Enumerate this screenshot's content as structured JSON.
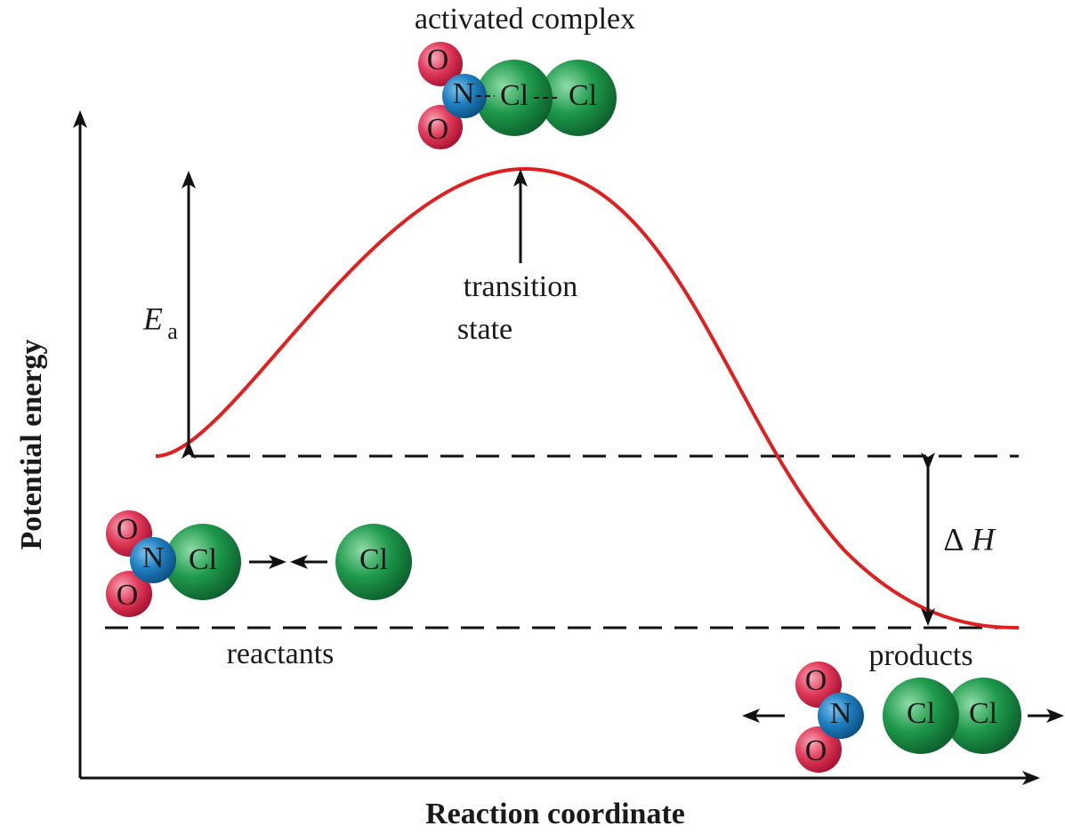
{
  "axes": {
    "y_label": "Potential energy",
    "x_label": "Reaction coordinate"
  },
  "labels": {
    "activated_complex": "activated complex",
    "transition_state": [
      "transition",
      "state"
    ],
    "ea_symbol": "E",
    "ea_subscript": "a",
    "delta": "Δ",
    "h_symbol": "H",
    "reactants": "reactants",
    "products": "products"
  },
  "molecules": {
    "activated_complex": [
      "O",
      "O",
      "N",
      "Cl",
      "Cl"
    ],
    "reactant_no2cl": [
      "O",
      "O",
      "N",
      "Cl"
    ],
    "reactant_cl": [
      "Cl"
    ],
    "product_no2": [
      "O",
      "O",
      "N"
    ],
    "product_cl2": [
      "Cl",
      "Cl"
    ]
  }
}
